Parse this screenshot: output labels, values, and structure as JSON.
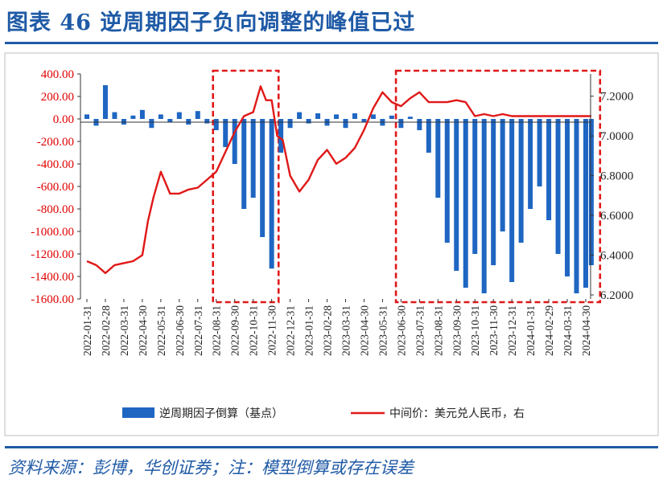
{
  "title": "图表 46   逆周期因子负向调整的峰值已过",
  "source": "资料来源：彭博，华创证券；注：模型倒算或存在误差",
  "colors": {
    "bar": "#1f66c2",
    "line": "#e01818",
    "highlight": "#e01818",
    "brand": "#1f5aa6"
  },
  "chart_data": {
    "type": "bar+line",
    "left_axis": {
      "min": -1600,
      "max": 400,
      "ticks": [
        "400.00",
        "200.00",
        "0.00",
        "-200.00",
        "-400.00",
        "-600.00",
        "-800.00",
        "-1000.00",
        "-1200.00",
        "-1400.00",
        "-1600.00"
      ]
    },
    "right_axis": {
      "min": 6.2,
      "max": 7.3,
      "ticks": [
        "7.2000",
        "7.0000",
        "6.8000",
        "6.6000",
        "6.4000",
        "6.2000"
      ]
    },
    "x_ticks": [
      "2022-01-31",
      "2022-02-28",
      "2022-03-31",
      "2022-04-30",
      "2022-05-31",
      "2022-06-30",
      "2022-07-31",
      "2022-08-31",
      "2022-09-30",
      "2022-10-31",
      "2022-11-30",
      "2022-12-31",
      "2023-01-31",
      "2023-02-28",
      "2023-03-31",
      "2023-04-30",
      "2023-05-31",
      "2023-06-30",
      "2023-07-31",
      "2023-08-31",
      "2023-09-30",
      "2023-10-31",
      "2023-11-30",
      "2023-12-31",
      "2024-01-31",
      "2024-02-29",
      "2024-03-31",
      "2024-04-30"
    ],
    "series": [
      {
        "name": "逆周期因子倒算（基点）",
        "type": "bar",
        "axis": "left",
        "x": [
          0.0,
          0.5,
          1.0,
          1.5,
          2.0,
          2.5,
          3.0,
          3.5,
          4.0,
          4.5,
          5.0,
          5.5,
          6.0,
          6.5,
          7.0,
          7.5,
          8.0,
          8.5,
          9.0,
          9.5,
          10.0,
          10.5,
          11.0,
          11.5,
          12.0,
          12.5,
          13.0,
          13.5,
          14.0,
          14.5,
          15.0,
          15.5,
          16.0,
          16.5,
          17.0,
          17.5,
          18.0,
          18.5,
          19.0,
          19.5,
          20.0,
          20.5,
          21.0,
          21.5,
          22.0,
          22.5,
          23.0,
          23.5,
          24.0,
          24.5,
          25.0,
          25.5,
          26.0,
          26.5,
          27.0,
          27.3
        ],
        "values": [
          40,
          -60,
          300,
          60,
          -50,
          30,
          80,
          -80,
          40,
          -30,
          60,
          -50,
          70,
          -40,
          -100,
          -250,
          -400,
          -800,
          -700,
          -1050,
          -1330,
          -300,
          -80,
          60,
          -40,
          50,
          -60,
          40,
          -80,
          50,
          -30,
          40,
          -60,
          30,
          -80,
          20,
          -100,
          -300,
          -700,
          -1100,
          -1350,
          -1500,
          -1200,
          -1550,
          -1300,
          -1000,
          -1450,
          -1100,
          -800,
          -600,
          -900,
          -1200,
          -1400,
          -1550,
          -1500,
          -1300
        ]
      },
      {
        "name": "中间价：美元兑人民币，右",
        "type": "line",
        "axis": "right",
        "x": [
          0.0,
          0.5,
          1.0,
          1.5,
          2.0,
          2.5,
          3.0,
          3.3,
          3.6,
          4.0,
          4.5,
          5.0,
          5.5,
          6.0,
          6.5,
          7.0,
          7.5,
          8.0,
          8.5,
          9.0,
          9.4,
          9.7,
          10.0,
          10.3,
          10.6,
          11.0,
          11.5,
          12.0,
          12.5,
          13.0,
          13.5,
          14.0,
          14.5,
          15.0,
          15.5,
          16.0,
          16.5,
          17.0,
          17.5,
          18.0,
          18.5,
          19.0,
          19.5,
          20.0,
          20.5,
          21.0,
          21.5,
          22.0,
          22.5,
          23.0,
          23.5,
          24.0,
          24.5,
          25.0,
          25.5,
          26.0,
          26.5,
          27.0,
          27.3
        ],
        "values": [
          6.37,
          6.35,
          6.31,
          6.35,
          6.36,
          6.37,
          6.4,
          6.57,
          6.69,
          6.82,
          6.71,
          6.71,
          6.73,
          6.74,
          6.78,
          6.82,
          6.92,
          7.02,
          7.1,
          7.12,
          7.25,
          7.18,
          7.18,
          7.0,
          6.98,
          6.8,
          6.72,
          6.78,
          6.88,
          6.93,
          6.86,
          6.89,
          6.94,
          7.03,
          7.14,
          7.22,
          7.17,
          7.15,
          7.19,
          7.22,
          7.17,
          7.17,
          7.17,
          7.18,
          7.17,
          7.1,
          7.11,
          7.1,
          7.11,
          7.1,
          7.1,
          7.1,
          7.1,
          7.1,
          7.1,
          7.1,
          7.1,
          7.1,
          7.1
        ]
      }
    ],
    "highlights": [
      {
        "from": 7.0,
        "to": 10.2
      },
      {
        "from": 16.9,
        "to": 27.6
      }
    ],
    "legend": [
      "逆周期因子倒算（基点）",
      "中间价：美元兑人民币，右"
    ]
  }
}
